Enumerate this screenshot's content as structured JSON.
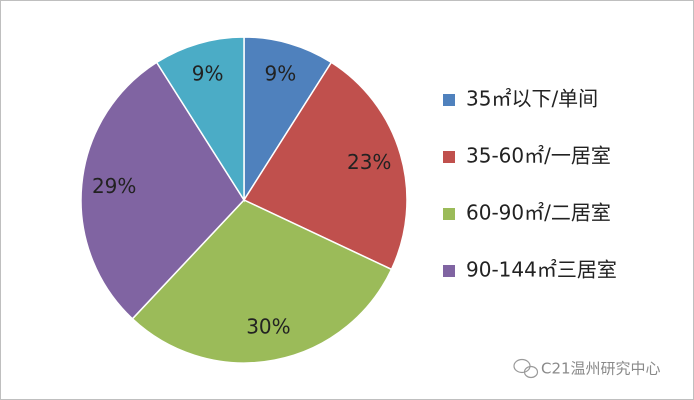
{
  "chart_data": {
    "type": "pie",
    "categories": [
      "35㎡以下/单间",
      "35-60㎡/一居室",
      "60-90㎡/二居室",
      "90-144㎡三居室",
      null
    ],
    "values": [
      9,
      23,
      30,
      29,
      9
    ],
    "value_labels": [
      "9%",
      "23%",
      "30%",
      "29%",
      "9%"
    ],
    "colors": [
      "#4f81bd",
      "#c0504d",
      "#9bbb59",
      "#8064a2",
      "#4bacc6"
    ],
    "legend": "right",
    "annotation": "C21温州研究中心"
  }
}
